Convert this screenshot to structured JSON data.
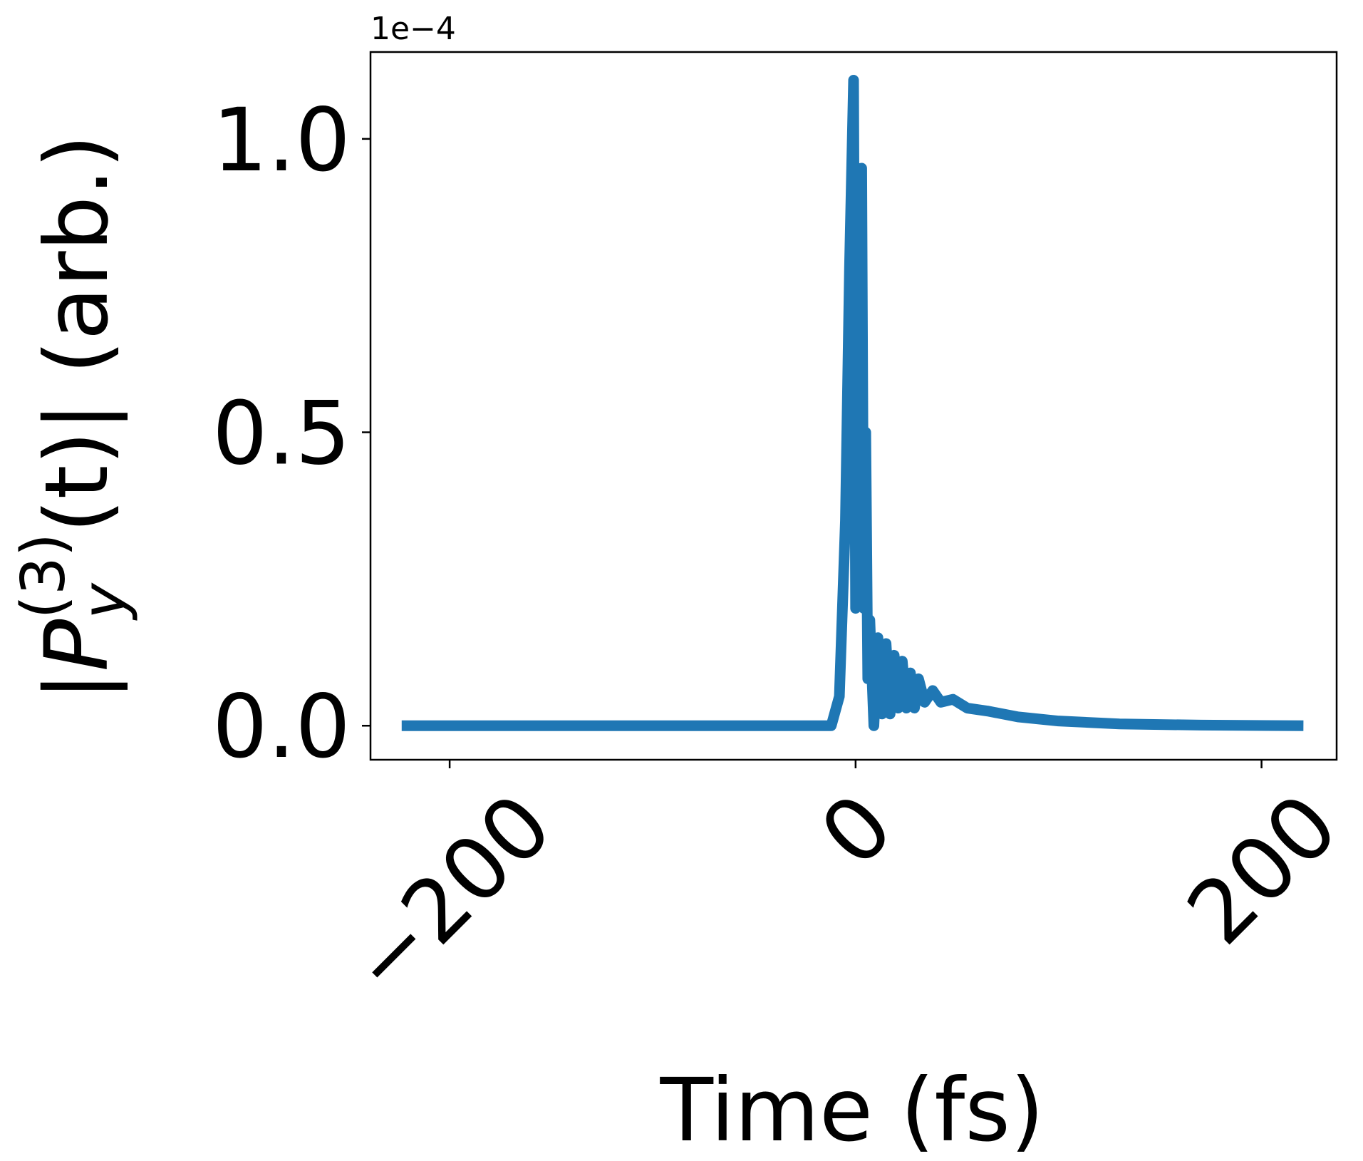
{
  "chart_data": {
    "type": "line",
    "xlabel": "Time (fs)",
    "ylabel_parts": [
      "|P",
      "y",
      "(3)",
      "(t)| (arb.)"
    ],
    "offset_text": "1e−4",
    "xlim": [
      -239,
      237
    ],
    "ylim": [
      -0.058,
      1.148
    ],
    "xticks": [
      {
        "value": -200,
        "label": "−200"
      },
      0,
      200
    ],
    "yticks": [
      {
        "value": 0,
        "label": "0.0"
      },
      0.5,
      {
        "value": 1,
        "label": "1.0"
      }
    ],
    "series": [
      {
        "color": "#1f77b4",
        "x": [
          -221,
          -12,
          -8,
          -5,
          -3,
          -1,
          0,
          1,
          2,
          3,
          4,
          5,
          6,
          7,
          9,
          11,
          13,
          15,
          17,
          19,
          21,
          23,
          25,
          27,
          29,
          31,
          34,
          38,
          42,
          48,
          55,
          65,
          80,
          100,
          130,
          170,
          218
        ],
        "values": [
          0,
          0,
          0.05,
          0.35,
          0.78,
          1.1,
          0.2,
          0.95,
          0.3,
          0.95,
          0.2,
          0.5,
          0.08,
          0.18,
          0,
          0.15,
          0.02,
          0.14,
          0.02,
          0.12,
          0.03,
          0.11,
          0.03,
          0.09,
          0.03,
          0.08,
          0.04,
          0.06,
          0.04,
          0.045,
          0.03,
          0.025,
          0.015,
          0.008,
          0.003,
          0.001,
          0
        ]
      }
    ]
  }
}
